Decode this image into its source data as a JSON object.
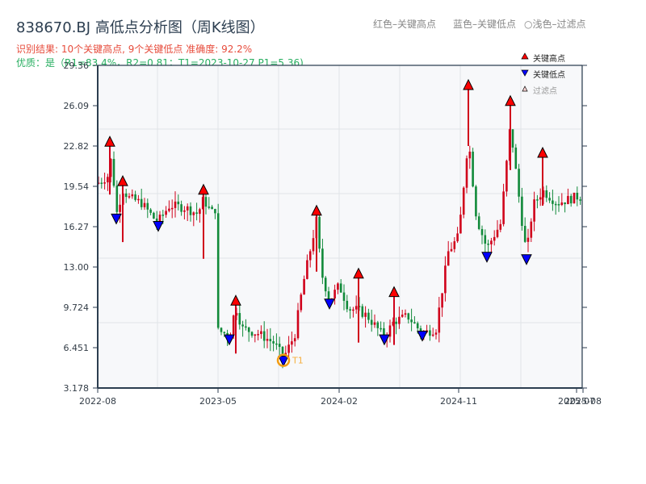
{
  "header": {
    "title": "838670.BJ 高低点分析图（周K线图）",
    "result_line": "识别结果: 10个关键高点, 9个关键低点   准确度: 92.2%",
    "quality_line": "优质：是（R1=83.4%，R2=0.81；T1=2023-10-27 P1=5.36)"
  },
  "top_legend": {
    "red": "红色–关键高点",
    "blue": "蓝色–关键低点",
    "light": "○浅色–过滤点"
  },
  "colors": {
    "up": "#d0021b",
    "down": "#118a3a",
    "high_marker": "#ff0000",
    "low_marker": "#0000ff",
    "t1_ring": "#f39c12",
    "plot_bg": "#f7f8fa",
    "grid": "#e1e4e8",
    "axis": "#2c3e50"
  },
  "chart_data": {
    "type": "candlestick",
    "title": "838670.BJ 高低点分析图（周K线图）",
    "xlabel": "",
    "ylabel": "",
    "ylim": [
      3.178,
      29.36
    ],
    "y_ticks": [
      "29.36",
      "26.09",
      "22.82",
      "19.54",
      "16.27",
      "13.00",
      "9.724",
      "6.451",
      "3.178"
    ],
    "x_ticks": [
      "2022-08",
      "2023-05",
      "2024-02",
      "2024-11",
      "2025-07",
      "2025-08"
    ],
    "grid": true,
    "legend": {
      "position": "upper right",
      "entries": [
        "关键高点",
        "关键低点",
        "过滤点"
      ]
    },
    "key_highs": [
      {
        "date": "2022-09",
        "price": 22.8
      },
      {
        "date": "2022-10",
        "price": 19.6
      },
      {
        "date": "2023-04",
        "price": 18.9
      },
      {
        "date": "2023-07",
        "price": 9.9
      },
      {
        "date": "2023-12",
        "price": 17.2
      },
      {
        "date": "2024-04",
        "price": 12.1
      },
      {
        "date": "2024-06",
        "price": 10.6
      },
      {
        "date": "2024-12",
        "price": 27.4
      },
      {
        "date": "2025-03",
        "price": 26.1
      },
      {
        "date": "2025-05",
        "price": 21.9
      }
    ],
    "key_lows": [
      {
        "date": "2022-09",
        "price": 16.9
      },
      {
        "date": "2022-12",
        "price": 16.3
      },
      {
        "date": "2023-07",
        "price": 7.1
      },
      {
        "date": "2023-10",
        "price": 5.36
      },
      {
        "date": "2024-01",
        "price": 10.0
      },
      {
        "date": "2024-06",
        "price": 7.1
      },
      {
        "date": "2024-08",
        "price": 7.4
      },
      {
        "date": "2025-02",
        "price": 13.8
      },
      {
        "date": "2025-04",
        "price": 13.6
      }
    ],
    "annotations": [
      {
        "label": "T1",
        "date": "2023-10-27",
        "price": 5.36
      }
    ]
  }
}
